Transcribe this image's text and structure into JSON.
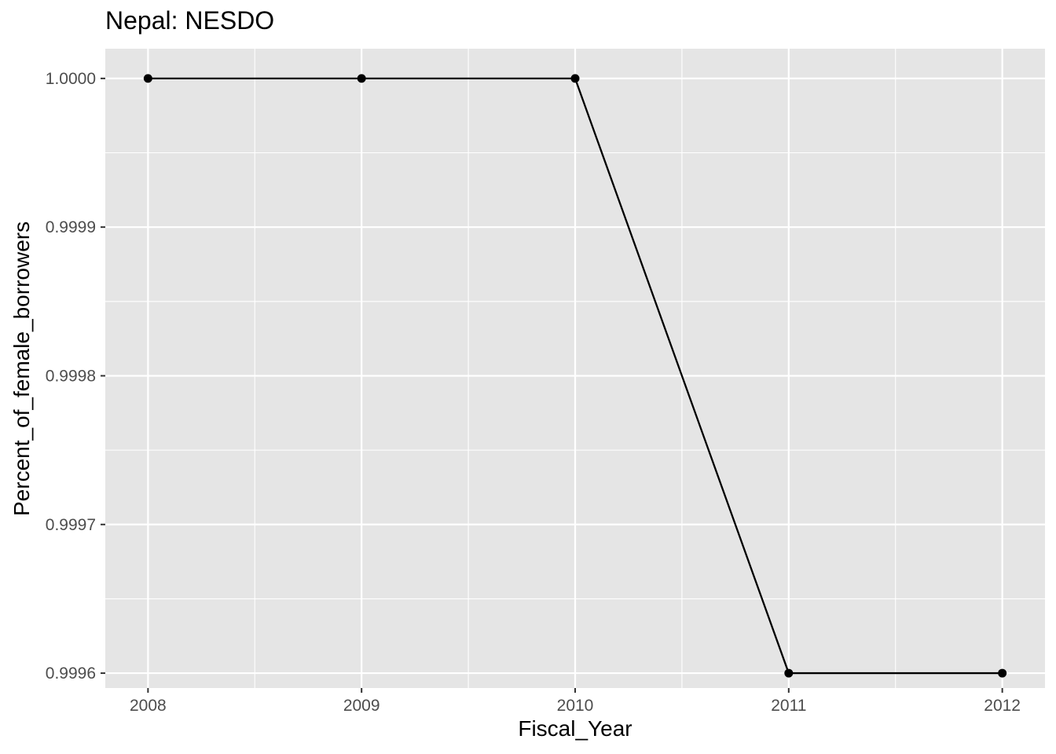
{
  "chart_data": {
    "type": "line",
    "title": "Nepal:  NESDO",
    "xlabel": "Fiscal_Year",
    "ylabel": "Percent_of_female_borrowers",
    "x": [
      2008,
      2009,
      2010,
      2011,
      2012
    ],
    "series": [
      {
        "values": [
          1.0,
          1.0,
          1.0,
          0.9996,
          0.9996
        ]
      }
    ],
    "xlim": [
      2007.8,
      2012.2
    ],
    "ylim": [
      0.99959,
      1.00002
    ],
    "xticks": [
      "2008",
      "2009",
      "2010",
      "2011",
      "2012"
    ],
    "yticks": [
      "0.9996",
      "0.9997",
      "0.9998",
      "0.9999",
      "1.0000"
    ],
    "ytick_values": [
      0.9996,
      0.9997,
      0.9998,
      0.9999,
      1.0
    ],
    "grid": true,
    "panel_color": "#e5e5e5",
    "grid_color": "#ffffff",
    "line_color": "#000000"
  }
}
